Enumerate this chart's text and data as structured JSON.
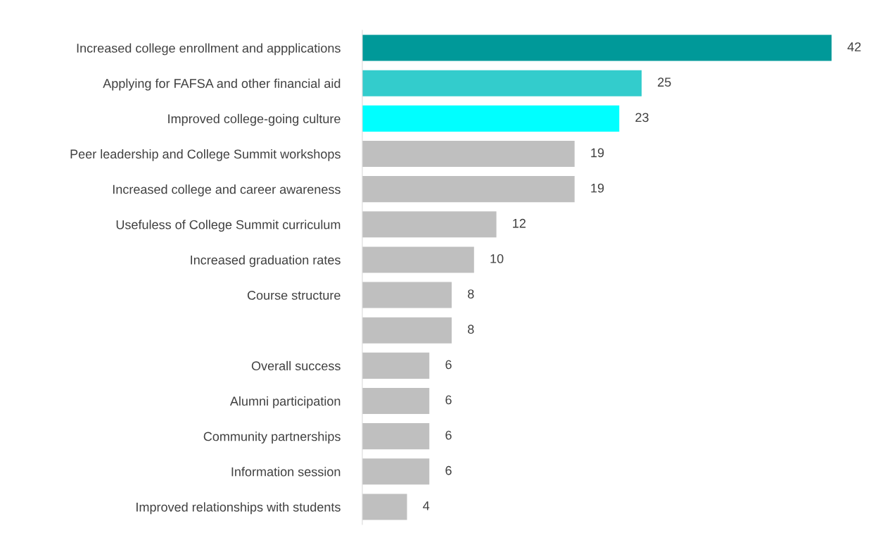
{
  "chart_data": {
    "type": "bar",
    "orientation": "horizontal",
    "categories": [
      "Increased college enrollment and appplications",
      "Applying for FAFSA and other financial aid",
      "Improved college-going culture",
      "Peer leadership and College Summit workshops",
      "Increased college and career awareness",
      "Usefuless of College Summit curriculum",
      "Increased graduation rates",
      "Course structure",
      null,
      "Overall success",
      "Alumni participation",
      "Community partnerships",
      "Information session",
      "Improved relationships with students"
    ],
    "values": [
      42,
      25,
      23,
      19,
      19,
      12,
      10,
      8,
      8,
      6,
      6,
      6,
      6,
      4
    ],
    "colors": [
      "#009999",
      "#33cccc",
      "#00ffff",
      "#bfbfbf",
      "#bfbfbf",
      "#bfbfbf",
      "#bfbfbf",
      "#bfbfbf",
      "#bfbfbf",
      "#bfbfbf",
      "#bfbfbf",
      "#bfbfbf",
      "#bfbfbf",
      "#bfbfbf"
    ],
    "data_labels": true,
    "grid": false,
    "legend": false
  }
}
